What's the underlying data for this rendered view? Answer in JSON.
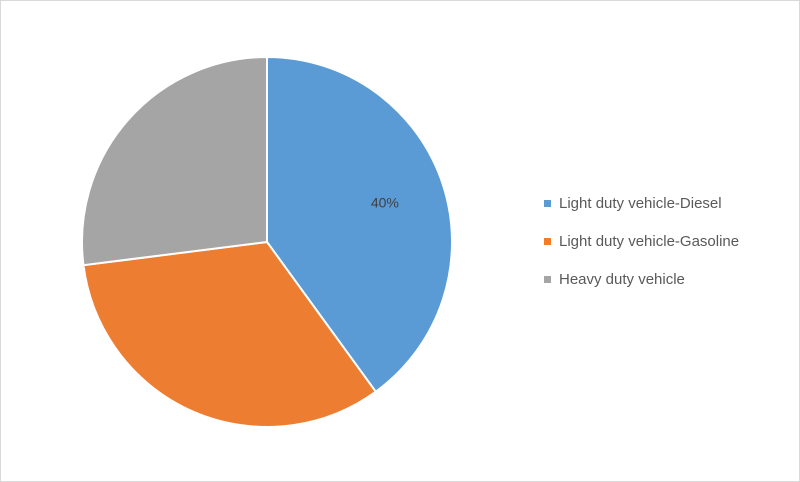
{
  "chart_data": {
    "type": "pie",
    "title": "",
    "start_angle_deg": 0,
    "direction": "clockwise",
    "legend_position": "right",
    "slices": [
      {
        "name": "Light duty vehicle-Diesel",
        "value": 40,
        "color": "#5B9BD5",
        "label": "40%"
      },
      {
        "name": "Light duty vehicle-Gasoline",
        "value": 33,
        "color": "#ED7D31",
        "label": ""
      },
      {
        "name": "Heavy duty vehicle",
        "value": 27,
        "color": "#A5A5A5",
        "label": ""
      }
    ]
  }
}
